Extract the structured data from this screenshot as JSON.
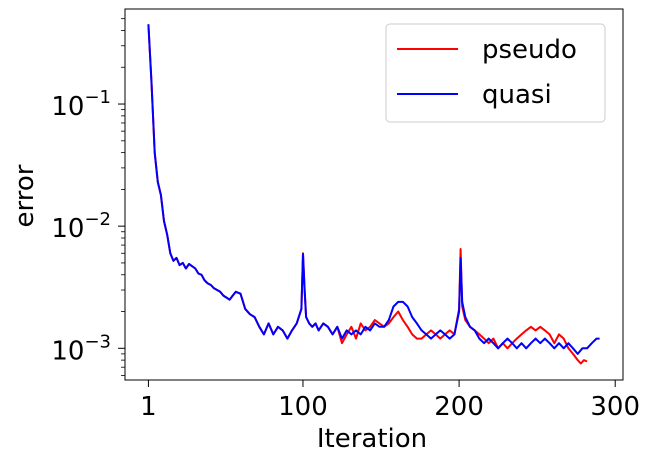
{
  "chart_data": {
    "type": "line",
    "title": "",
    "xlabel": "Iteration",
    "ylabel": "error",
    "xscale": "linear",
    "yscale": "log",
    "xlim": [
      -14,
      305
    ],
    "ylim": [
      0.00055,
      0.6
    ],
    "xticks": [
      {
        "value": 1,
        "label": "1"
      },
      {
        "value": 100,
        "label": "100"
      },
      {
        "value": 200,
        "label": "200"
      },
      {
        "value": 300,
        "label": "300"
      }
    ],
    "yticks": [
      {
        "value": 0.001,
        "base": "10",
        "exp": "−3"
      },
      {
        "value": 0.01,
        "base": "10",
        "exp": "−2"
      },
      {
        "value": 0.1,
        "base": "10",
        "exp": "−1"
      }
    ],
    "grid": false,
    "legend_position": "top-right",
    "series": [
      {
        "name": "pseudo",
        "color": "#ff0000",
        "x": [
          1,
          3,
          5,
          7,
          9,
          11,
          13,
          15,
          17,
          19,
          21,
          23,
          25,
          27,
          29,
          31,
          33,
          35,
          37,
          39,
          41,
          43,
          45,
          47,
          49,
          51,
          53,
          55,
          57,
          60,
          63,
          66,
          69,
          72,
          75,
          78,
          81,
          84,
          87,
          90,
          93,
          96,
          99,
          100,
          101,
          102,
          104,
          106,
          108,
          110,
          113,
          116,
          119,
          122,
          125,
          128,
          131,
          134,
          137,
          140,
          143,
          146,
          149,
          152,
          155,
          158,
          161,
          164,
          167,
          170,
          173,
          176,
          179,
          182,
          185,
          188,
          191,
          194,
          197,
          200,
          201,
          202,
          204,
          207,
          210,
          213,
          216,
          219,
          222,
          225,
          228,
          231,
          234,
          237,
          240,
          243,
          246,
          249,
          252,
          255,
          258,
          261,
          264,
          267,
          270,
          273,
          276,
          278,
          280,
          282
        ],
        "y": [
          0.45,
          0.15,
          0.04,
          0.023,
          0.018,
          0.011,
          0.0085,
          0.006,
          0.0052,
          0.0055,
          0.0048,
          0.005,
          0.0045,
          0.0049,
          0.0047,
          0.0045,
          0.0041,
          0.004,
          0.0036,
          0.0034,
          0.0033,
          0.0031,
          0.003,
          0.0029,
          0.0027,
          0.0026,
          0.0025,
          0.0027,
          0.0029,
          0.0028,
          0.0021,
          0.0019,
          0.0018,
          0.0015,
          0.0013,
          0.0016,
          0.0013,
          0.0015,
          0.0014,
          0.0012,
          0.0014,
          0.0016,
          0.0021,
          0.006,
          0.0032,
          0.0018,
          0.0016,
          0.0015,
          0.0016,
          0.0014,
          0.0016,
          0.0015,
          0.0013,
          0.0015,
          0.0011,
          0.0013,
          0.0015,
          0.0012,
          0.0016,
          0.0014,
          0.0015,
          0.0017,
          0.0016,
          0.0015,
          0.0016,
          0.0018,
          0.002,
          0.0017,
          0.0015,
          0.0013,
          0.0012,
          0.0012,
          0.0013,
          0.0014,
          0.0013,
          0.0012,
          0.0013,
          0.0014,
          0.0013,
          0.0021,
          0.0065,
          0.0022,
          0.0017,
          0.0015,
          0.0014,
          0.0013,
          0.0012,
          0.0011,
          0.0012,
          0.001,
          0.0011,
          0.001,
          0.0011,
          0.0012,
          0.0013,
          0.0014,
          0.0015,
          0.0014,
          0.0015,
          0.0014,
          0.0013,
          0.0011,
          0.0013,
          0.0012,
          0.001,
          0.0009,
          0.0008,
          0.00075,
          0.0008,
          0.00078
        ]
      },
      {
        "name": "quasi",
        "color": "#0000ff",
        "x": [
          1,
          3,
          5,
          7,
          9,
          11,
          13,
          15,
          17,
          19,
          21,
          23,
          25,
          27,
          29,
          31,
          33,
          35,
          37,
          39,
          41,
          43,
          45,
          47,
          49,
          51,
          53,
          55,
          57,
          60,
          63,
          66,
          69,
          72,
          75,
          78,
          81,
          84,
          87,
          90,
          93,
          96,
          99,
          100,
          101,
          102,
          104,
          106,
          108,
          110,
          113,
          116,
          119,
          122,
          125,
          128,
          131,
          134,
          137,
          140,
          143,
          146,
          149,
          152,
          155,
          158,
          161,
          164,
          167,
          170,
          173,
          176,
          179,
          182,
          185,
          188,
          191,
          194,
          197,
          200,
          201,
          202,
          204,
          207,
          210,
          213,
          216,
          219,
          222,
          225,
          228,
          231,
          234,
          237,
          240,
          243,
          246,
          249,
          252,
          255,
          258,
          261,
          264,
          267,
          270,
          273,
          276,
          279,
          282,
          285,
          288,
          290
        ],
        "y": [
          0.45,
          0.15,
          0.04,
          0.023,
          0.018,
          0.011,
          0.0085,
          0.006,
          0.0052,
          0.0055,
          0.0048,
          0.005,
          0.0045,
          0.0049,
          0.0047,
          0.0045,
          0.0041,
          0.004,
          0.0036,
          0.0034,
          0.0033,
          0.0031,
          0.003,
          0.0029,
          0.0027,
          0.0026,
          0.0025,
          0.0027,
          0.0029,
          0.0028,
          0.0021,
          0.0019,
          0.0018,
          0.0015,
          0.0013,
          0.0016,
          0.0013,
          0.0015,
          0.0014,
          0.0012,
          0.0014,
          0.0016,
          0.0021,
          0.0059,
          0.0031,
          0.0018,
          0.0016,
          0.0015,
          0.0016,
          0.0014,
          0.0016,
          0.0015,
          0.0013,
          0.0015,
          0.0012,
          0.0014,
          0.0013,
          0.0014,
          0.0013,
          0.0015,
          0.0014,
          0.0016,
          0.0015,
          0.0015,
          0.0017,
          0.0022,
          0.0024,
          0.0024,
          0.0022,
          0.0018,
          0.0016,
          0.0014,
          0.0013,
          0.0012,
          0.0013,
          0.0014,
          0.0013,
          0.0012,
          0.0013,
          0.002,
          0.0055,
          0.0024,
          0.0018,
          0.0015,
          0.0014,
          0.0012,
          0.0011,
          0.0012,
          0.0011,
          0.001,
          0.0011,
          0.0012,
          0.0011,
          0.001,
          0.0011,
          0.001,
          0.0011,
          0.0012,
          0.0011,
          0.0012,
          0.0011,
          0.001,
          0.0011,
          0.001,
          0.0011,
          0.001,
          0.0009,
          0.001,
          0.001,
          0.0011,
          0.0012,
          0.0012
        ]
      }
    ]
  }
}
